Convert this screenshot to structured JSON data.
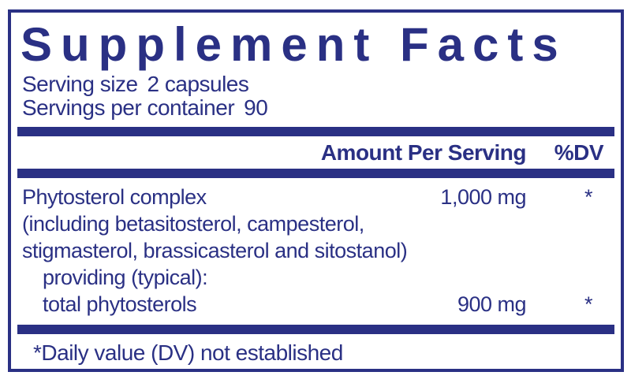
{
  "colors": {
    "navy": "#2A3084",
    "background": "#FFFFFF"
  },
  "title": "Supplement Facts",
  "serving": {
    "size_label": "Serving size",
    "size_value": "2 capsules",
    "container_label": "Servings per container",
    "container_value": "90"
  },
  "header": {
    "amount": "Amount Per Serving",
    "dv": "%DV"
  },
  "rows": [
    {
      "name": "Phytosterol complex",
      "amount": "1,000 mg",
      "dv": "*"
    },
    {
      "name": "(including betasitosterol, campesterol,",
      "amount": "",
      "dv": ""
    },
    {
      "name": "stigmasterol, brassicasterol and sitostanol)",
      "amount": "",
      "dv": ""
    },
    {
      "name": "providing (typical):",
      "amount": "",
      "dv": ""
    },
    {
      "name": "total phytosterols",
      "amount": "900 mg",
      "dv": "*"
    }
  ],
  "footnote": "*Daily value (DV) not established"
}
